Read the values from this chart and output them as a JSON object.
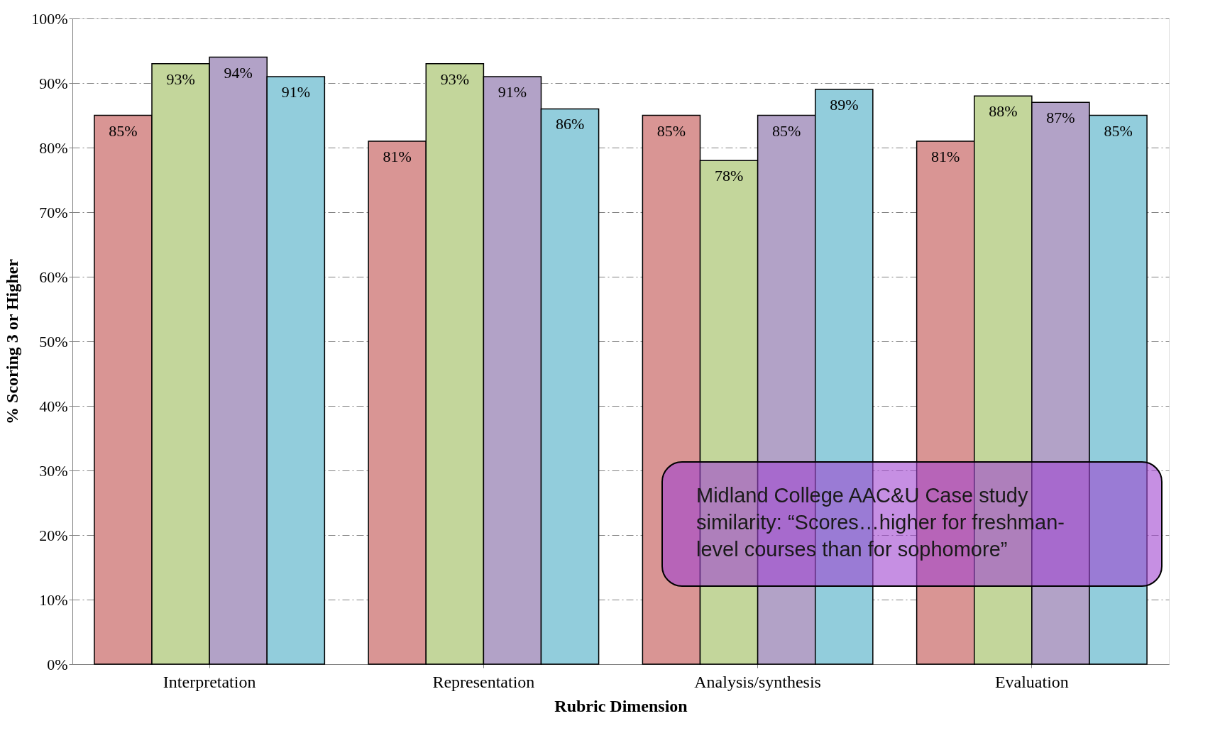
{
  "chart_data": {
    "type": "bar",
    "xlabel": "Rubric Dimension",
    "ylabel": "% Scoring 3 or Higher",
    "categories": [
      "Interpretation",
      "Representation",
      "Analysis/synthesis",
      "Evaluation"
    ],
    "series": [
      {
        "color": "#d99594",
        "values": [
          85,
          81,
          85,
          81
        ],
        "value_labels": [
          "85%",
          "81%",
          "85%",
          "81%"
        ]
      },
      {
        "color": "#c3d69b",
        "values": [
          93,
          93,
          78,
          88
        ],
        "value_labels": [
          "93%",
          "93%",
          "78%",
          "88%"
        ]
      },
      {
        "color": "#b2a2c7",
        "values": [
          94,
          91,
          85,
          87
        ],
        "value_labels": [
          "94%",
          "91%",
          "85%",
          "87%"
        ]
      },
      {
        "color": "#92cddc",
        "values": [
          91,
          86,
          89,
          85
        ],
        "value_labels": [
          "91%",
          "86%",
          "89%",
          "85%"
        ]
      }
    ],
    "ylim": [
      0,
      100
    ],
    "yticks": [
      {
        "value": 0,
        "label": "0%"
      },
      {
        "value": 10,
        "label": "10%"
      },
      {
        "value": 20,
        "label": "20%"
      },
      {
        "value": 30,
        "label": "30%"
      },
      {
        "value": 40,
        "label": "40%"
      },
      {
        "value": 50,
        "label": "50%"
      },
      {
        "value": 60,
        "label": "60%"
      },
      {
        "value": 70,
        "label": "70%"
      },
      {
        "value": 80,
        "label": "80%"
      },
      {
        "value": 90,
        "label": "90%"
      },
      {
        "value": 100,
        "label": "100%"
      }
    ],
    "grid": "y",
    "annotations": [
      "Midland College AAC&U Case study similarity: “Scores…higher for freshman-level courses than for sophomore”"
    ]
  }
}
